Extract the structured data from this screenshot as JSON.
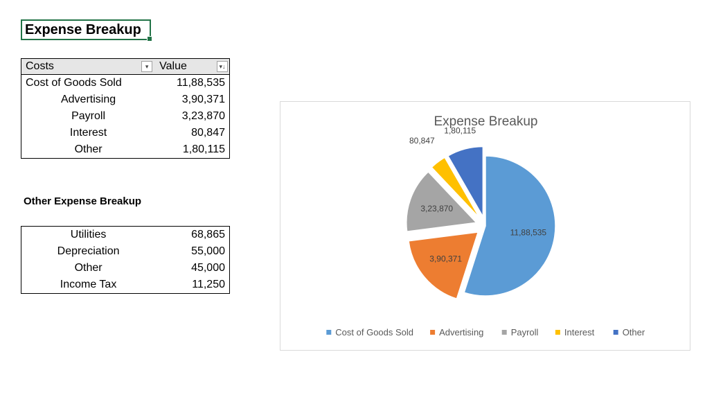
{
  "sheet": {
    "title_cell": "Expense Breakup",
    "pivot_table": {
      "headers": {
        "costs": "Costs",
        "value": "Value"
      },
      "rows": [
        {
          "label": "Cost of Goods Sold",
          "value": "11,88,535"
        },
        {
          "label": "Advertising",
          "value": "3,90,371"
        },
        {
          "label": "Payroll",
          "value": "3,23,870"
        },
        {
          "label": "Interest",
          "value": "80,847"
        },
        {
          "label": "Other",
          "value": "1,80,115"
        }
      ]
    },
    "other_heading": "Other Expense Breakup",
    "other_table": {
      "rows": [
        {
          "label": "Utilities",
          "value": "68,865"
        },
        {
          "label": "Depreciation",
          "value": "55,000"
        },
        {
          "label": "Other",
          "value": "45,000"
        },
        {
          "label": "Income Tax",
          "value": "11,250"
        }
      ]
    }
  },
  "chart_data": {
    "type": "pie",
    "title": "Expense Breakup",
    "legend_position": "bottom",
    "categories": [
      "Cost of Goods Sold",
      "Advertising",
      "Payroll",
      "Interest",
      "Other"
    ],
    "values": [
      1188535,
      390371,
      323870,
      80847,
      180115
    ],
    "value_labels": [
      "11,88,535",
      "3,90,371",
      "3,23,870",
      "80,847",
      "1,80,115"
    ],
    "colors": [
      "#5b9bd5",
      "#ed7d31",
      "#a5a5a5",
      "#ffc000",
      "#4472c4"
    ],
    "exploded": [
      false,
      true,
      true,
      true,
      true
    ],
    "label_color": "#404040",
    "title_color": "#595959"
  },
  "icons": {
    "filter_dropdown": "▾",
    "sort_descending": "▾↓"
  }
}
